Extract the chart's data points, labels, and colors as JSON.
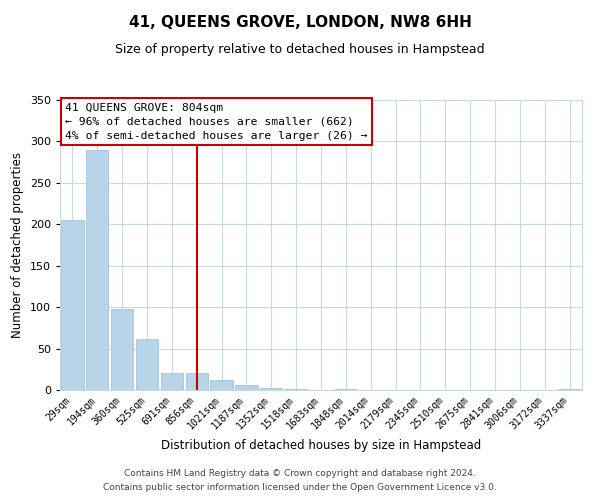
{
  "title": "41, QUEENS GROVE, LONDON, NW8 6HH",
  "subtitle": "Size of property relative to detached houses in Hampstead",
  "xlabel": "Distribution of detached houses by size in Hampstead",
  "ylabel": "Number of detached properties",
  "bar_labels": [
    "29sqm",
    "194sqm",
    "360sqm",
    "525sqm",
    "691sqm",
    "856sqm",
    "1021sqm",
    "1187sqm",
    "1352sqm",
    "1518sqm",
    "1683sqm",
    "1848sqm",
    "2014sqm",
    "2179sqm",
    "2345sqm",
    "2510sqm",
    "2675sqm",
    "2841sqm",
    "3006sqm",
    "3172sqm",
    "3337sqm"
  ],
  "bar_heights": [
    205,
    290,
    98,
    62,
    21,
    20,
    12,
    6,
    2,
    1,
    0,
    1,
    0,
    0,
    0,
    0,
    0,
    0,
    0,
    0,
    1
  ],
  "bar_color": "#b8d4e8",
  "bar_edge_color": "#9bbcd4",
  "vline_x_index": 5,
  "vline_color": "#cc0000",
  "annotation_title": "41 QUEENS GROVE: 804sqm",
  "annotation_line1": "← 96% of detached houses are smaller (662)",
  "annotation_line2": "4% of semi-detached houses are larger (26) →",
  "annotation_box_color": "#ffffff",
  "annotation_box_edge": "#cc0000",
  "ylim": [
    0,
    350
  ],
  "yticks": [
    0,
    50,
    100,
    150,
    200,
    250,
    300,
    350
  ],
  "footer1": "Contains HM Land Registry data © Crown copyright and database right 2024.",
  "footer2": "Contains public sector information licensed under the Open Government Licence v3.0.",
  "bg_color": "#ffffff",
  "grid_color": "#c8d8e8",
  "title_fontsize": 11,
  "subtitle_fontsize": 9
}
